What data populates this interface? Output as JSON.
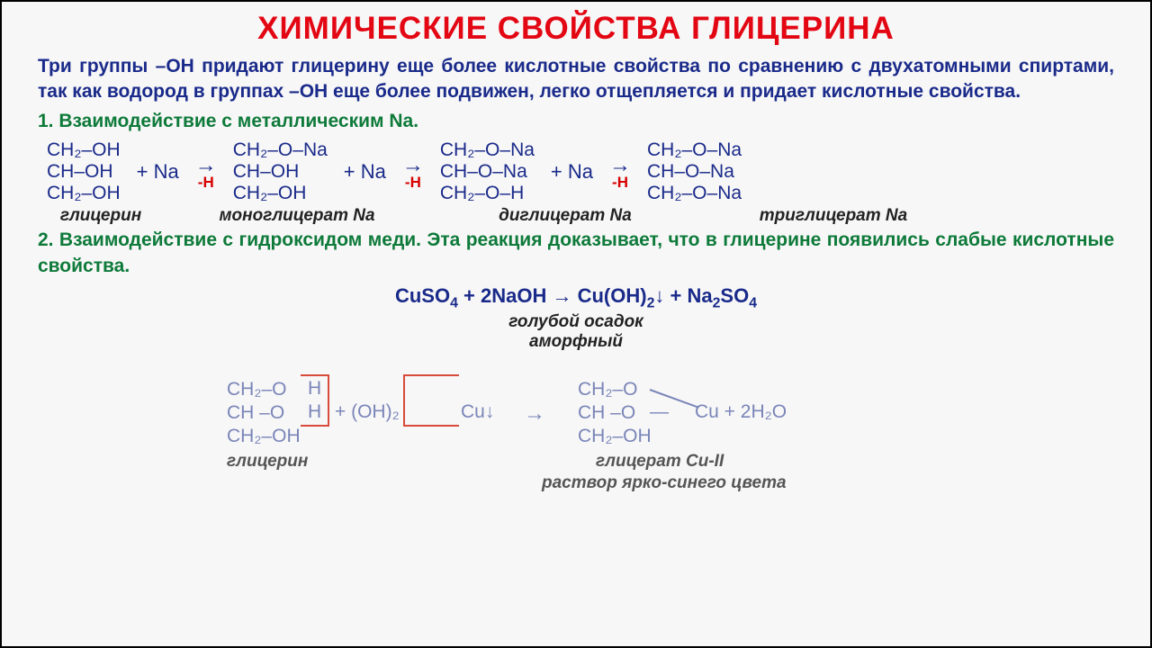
{
  "title": "ХИМИЧЕСКИЕ СВОЙСТВА ГЛИЦЕРИНА",
  "intro": "Три группы –ОН придают глицерину еще более кислотные свойства по сравнению с двухатомными спиртами, так как водород в группах –ОН еще более подвижен, легко отщепляется и придает кислотные свойства.",
  "section1": "1. Взаимодействие с металлическим Na.",
  "section2": "2. Взаимодействие с гидроксидом меди. Эта реакция доказывает, что в глицерине появились слабые кислотные свойства.",
  "colors": {
    "title": "#e30613",
    "body": "#1a2a8a",
    "heading": "#0e7a3a",
    "minusH": "#d60000",
    "faded": "#7a85b8",
    "redline": "#d94a3a",
    "black": "#222222"
  },
  "rxn1": {
    "mol1": [
      "CH₂–OH",
      "CH–OH",
      "CH₂–OH"
    ],
    "mol2": [
      "CH₂–O–Na",
      "CH–OH",
      "CH₂–OH"
    ],
    "mol3": [
      "CH₂–O–Na",
      "CH–O–Na",
      "CH₂–O–H"
    ],
    "mol4": [
      "CH₂–O–Na",
      "CH–O–Na",
      "CH₂–O–Na"
    ],
    "plusNa": "+ Na",
    "arrow": "→",
    "minusH": "-H",
    "labels": [
      "глицерин",
      "моноглицерат Na",
      "диглицерат Na",
      "триглицерат Na"
    ]
  },
  "eq": {
    "formula_html": "CuSO<sub>4</sub> + 2NaOH → Cu(OH)<sub>2</sub>↓ + Na<sub>2</sub>SO<sub>4</sub>",
    "label1": "голубой осадок",
    "label2": "аморфный"
  },
  "rxn2": {
    "left": [
      "CH₂–O",
      "CH –O",
      "CH₂–OH"
    ],
    "left_h": "H",
    "plus": "+ (OH)₂",
    "cu": "Cu↓",
    "arrow": "→",
    "right": [
      "CH₂–O",
      "CH –O",
      "CH₂–OH"
    ],
    "cu2": "Cu + 2H₂O",
    "label_left": "глицерин",
    "label_right1": "глицерат Cu-II",
    "label_right2": "раствор ярко-синего цвета"
  }
}
